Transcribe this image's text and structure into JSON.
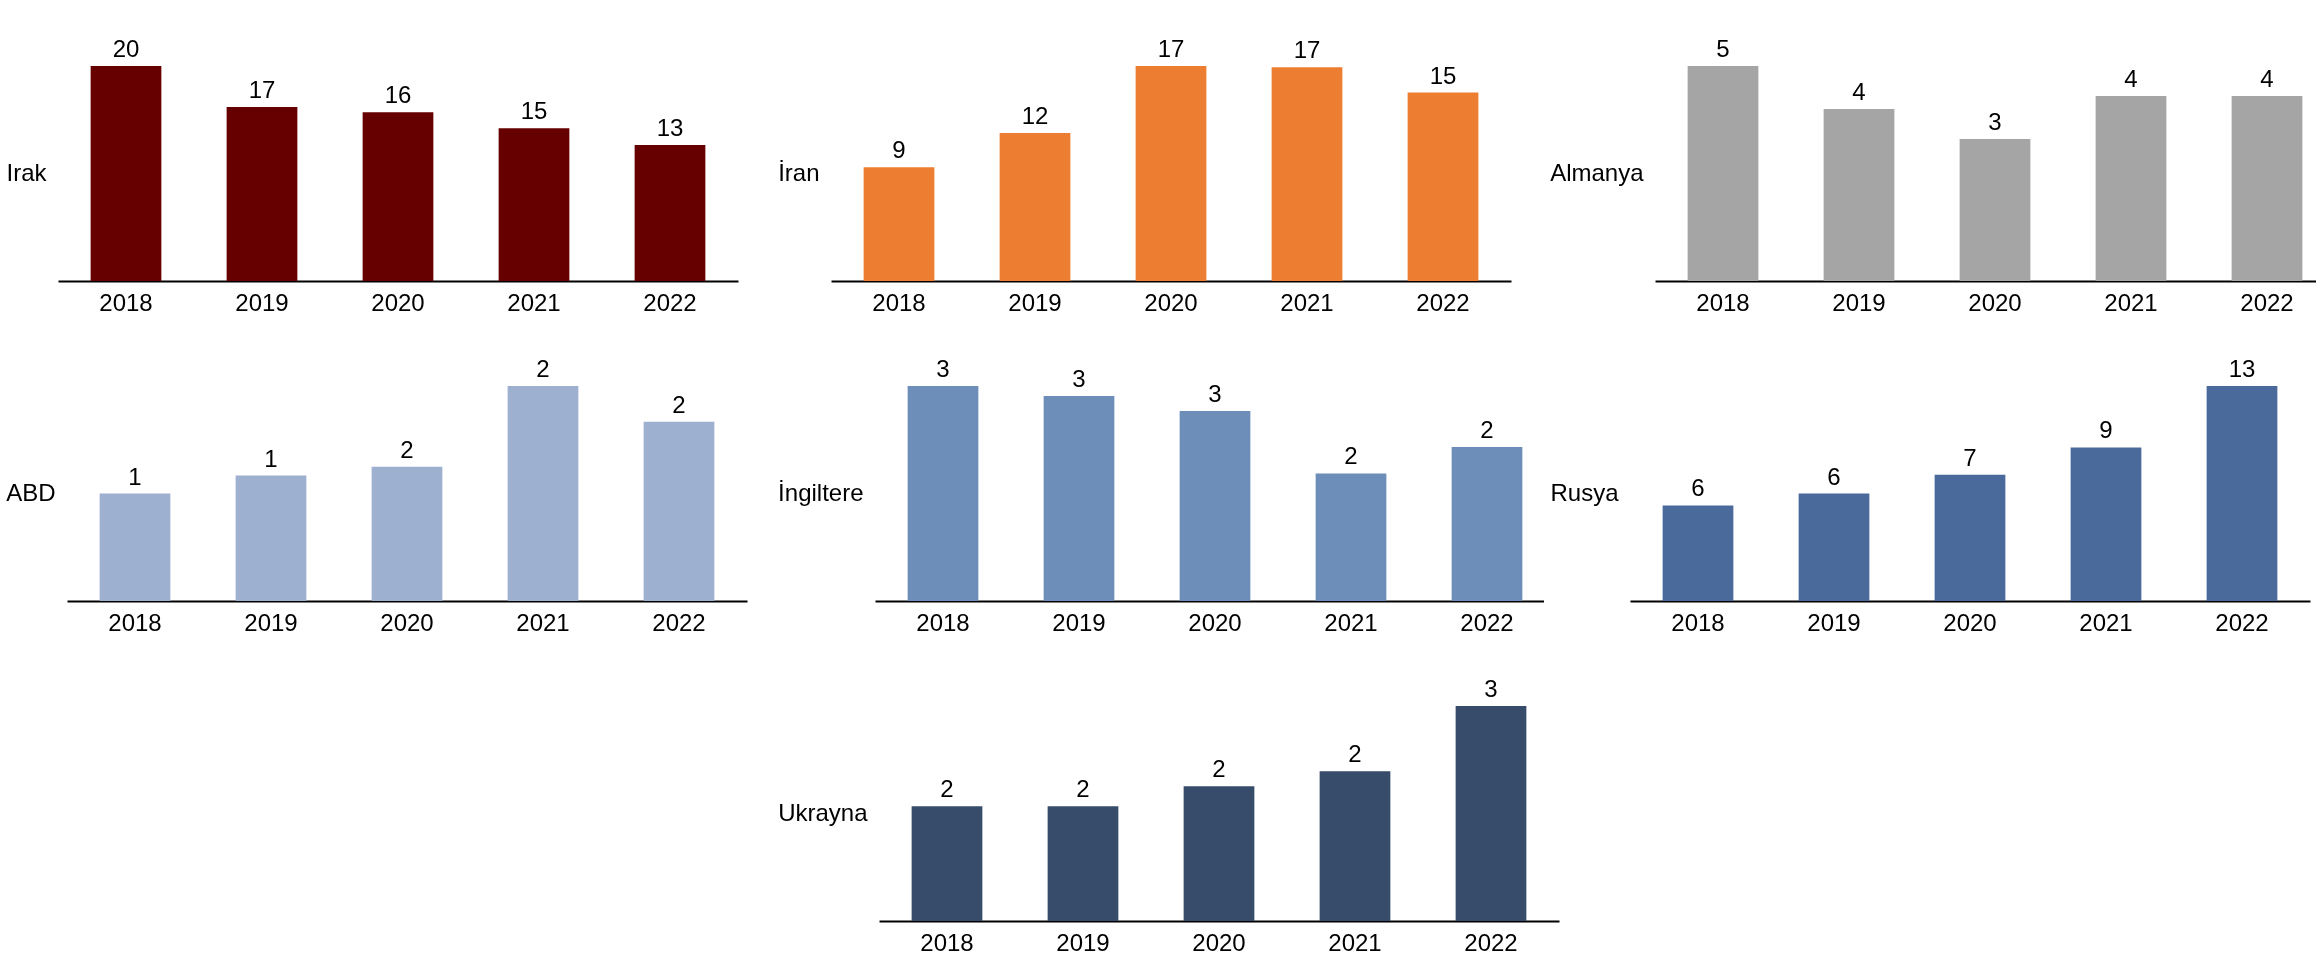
{
  "chart_data": [
    {
      "type": "bar",
      "ylabel": "Irak",
      "categories": [
        "2018",
        "2019",
        "2020",
        "2021",
        "2022"
      ],
      "values": [
        20.4,
        16.5,
        16.0,
        14.5,
        12.9
      ],
      "value_labels": [
        "20",
        "17",
        "16",
        "15",
        "13"
      ],
      "color": "#660000"
    },
    {
      "type": "bar",
      "ylabel": "İran",
      "categories": [
        "2018",
        "2019",
        "2020",
        "2021",
        "2022"
      ],
      "values": [
        9.0,
        11.7,
        17.0,
        16.9,
        14.9
      ],
      "value_labels": [
        "9",
        "12",
        "17",
        "17",
        "15"
      ],
      "color": "#ed7d31"
    },
    {
      "type": "bar",
      "ylabel": "Almanya",
      "categories": [
        "2018",
        "2019",
        "2020",
        "2021",
        "2022"
      ],
      "values": [
        5.0,
        4.0,
        3.3,
        4.3,
        4.3
      ],
      "value_labels": [
        "5",
        "4",
        "3",
        "4",
        "4"
      ],
      "color": "#a5a5a5"
    },
    {
      "type": "bar",
      "ylabel": "ABD",
      "categories": [
        "2018",
        "2019",
        "2020",
        "2021",
        "2022"
      ],
      "values": [
        1.2,
        1.4,
        1.5,
        2.4,
        2.0
      ],
      "value_labels": [
        "1",
        "1",
        "2",
        "2",
        "2"
      ],
      "color": "#9db0cf"
    },
    {
      "type": "bar",
      "ylabel": "İngiltere",
      "categories": [
        "2018",
        "2019",
        "2020",
        "2021",
        "2022"
      ],
      "values": [
        3.0,
        2.86,
        2.65,
        1.78,
        2.15
      ],
      "value_labels": [
        "3",
        "3",
        "3",
        "2",
        "2"
      ],
      "color": "#6d8eb9"
    },
    {
      "type": "bar",
      "ylabel": "Rusya",
      "categories": [
        "2018",
        "2019",
        "2020",
        "2021",
        "2022"
      ],
      "values": [
        5.6,
        6.3,
        7.4,
        9.0,
        12.6
      ],
      "value_labels": [
        "6",
        "6",
        "7",
        "9",
        "13"
      ],
      "color": "#4a6a9b"
    },
    {
      "type": "bar",
      "ylabel": "Ukrayna",
      "categories": [
        "2018",
        "2019",
        "2020",
        "2021",
        "2022"
      ],
      "values": [
        1.6,
        1.6,
        1.88,
        2.09,
        3.0
      ],
      "value_labels": [
        "2",
        "2",
        "2",
        "2",
        "3"
      ],
      "color": "#374c6b"
    }
  ]
}
